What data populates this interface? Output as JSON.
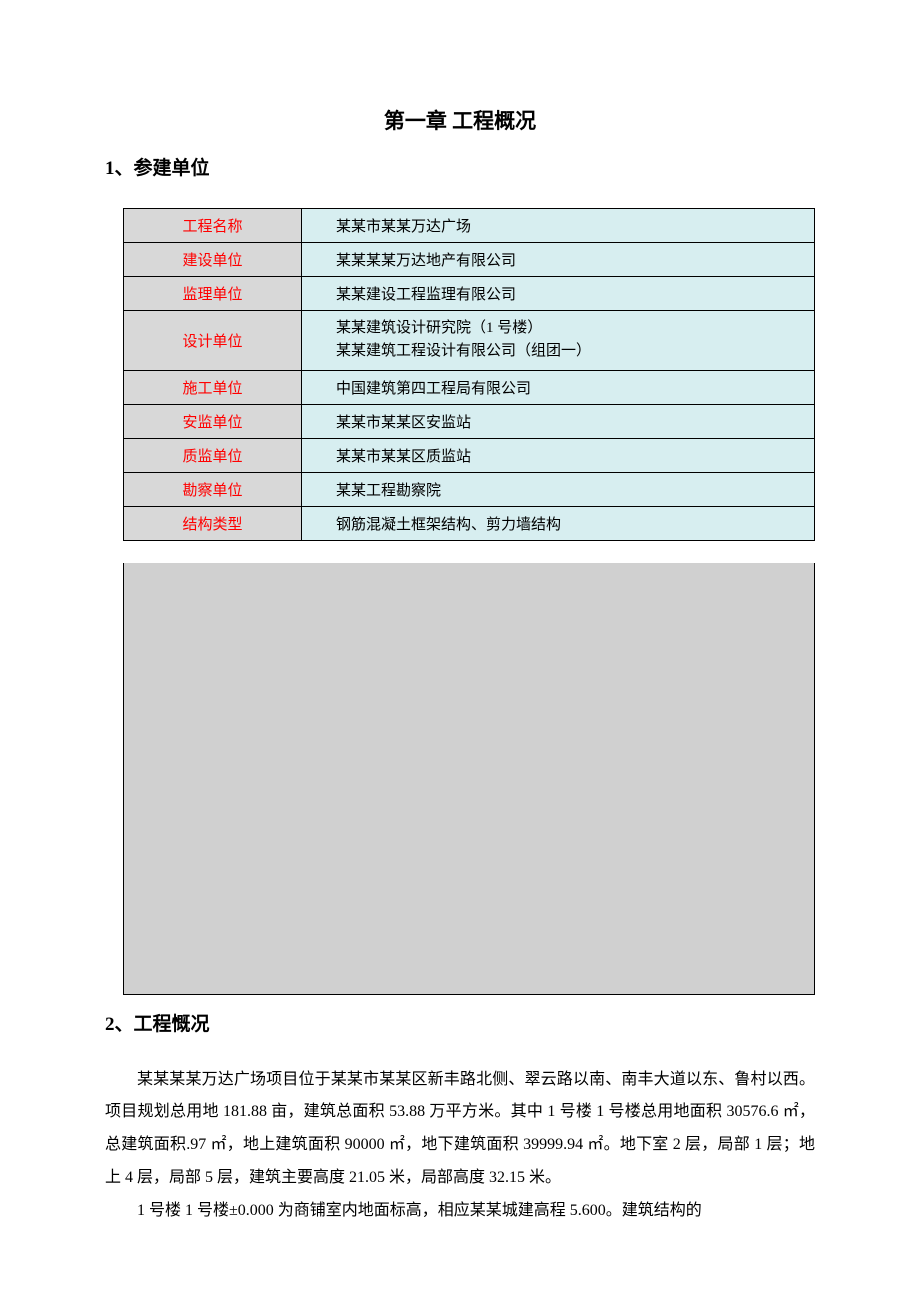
{
  "chapter_title": "第一章  工程概况",
  "section1_title": "1、参建单位",
  "section2_title": "2、工程慨况",
  "table_rows": [
    {
      "label": "工程名称",
      "value": "某某市某某万达广场"
    },
    {
      "label": "建设单位",
      "value": "某某某某万达地产有限公司"
    },
    {
      "label": "监理单位",
      "value": "某某建设工程监理有限公司"
    },
    {
      "label": "设计单位",
      "value": "某某建筑设计研究院（1 号楼）",
      "value2": "某某建筑工程设计有限公司（组团一）"
    },
    {
      "label": "施工单位",
      "value": "中国建筑第四工程局有限公司"
    },
    {
      "label": "安监单位",
      "value": "某某市某某区安监站"
    },
    {
      "label": "质监单位",
      "value": "某某市某某区质监站"
    },
    {
      "label": "勘察单位",
      "value": "某某工程勘察院"
    },
    {
      "label": "结构类型",
      "value": "钢筋混凝土框架结构、剪力墙结构"
    }
  ],
  "paragraphs": [
    "某某某某万达广场项目位于某某市某某区新丰路北侧、翠云路以南、南丰大道以东、鲁村以西。项目规划总用地 181.88 亩，建筑总面积 53.88 万平方米。其中 1 号楼 1 号楼总用地面积 30576.6 ㎡，总建筑面积.97 ㎡，地上建筑面积 90000 ㎡，地下建筑面积 39999.94 ㎡。地下室 2 层，局部 1 层；地上 4 层，局部 5 层，建筑主要高度 21.05 米，局部高度 32.15 米。",
    "1 号楼 1 号楼±0.000 为商铺室内地面标高，相应某某城建高程 5.600。建筑结构的"
  ],
  "colors": {
    "label_bg": "#d8d8d8",
    "label_text": "#ff0000",
    "value_bg": "#d7eef0",
    "map_bg": "#d0d0d0",
    "border": "#000000",
    "text": "#000000",
    "page_bg": "#ffffff"
  },
  "fonts": {
    "chapter_title_pt": 21,
    "section_title_pt": 19,
    "table_pt": 15,
    "body_pt": 16
  }
}
